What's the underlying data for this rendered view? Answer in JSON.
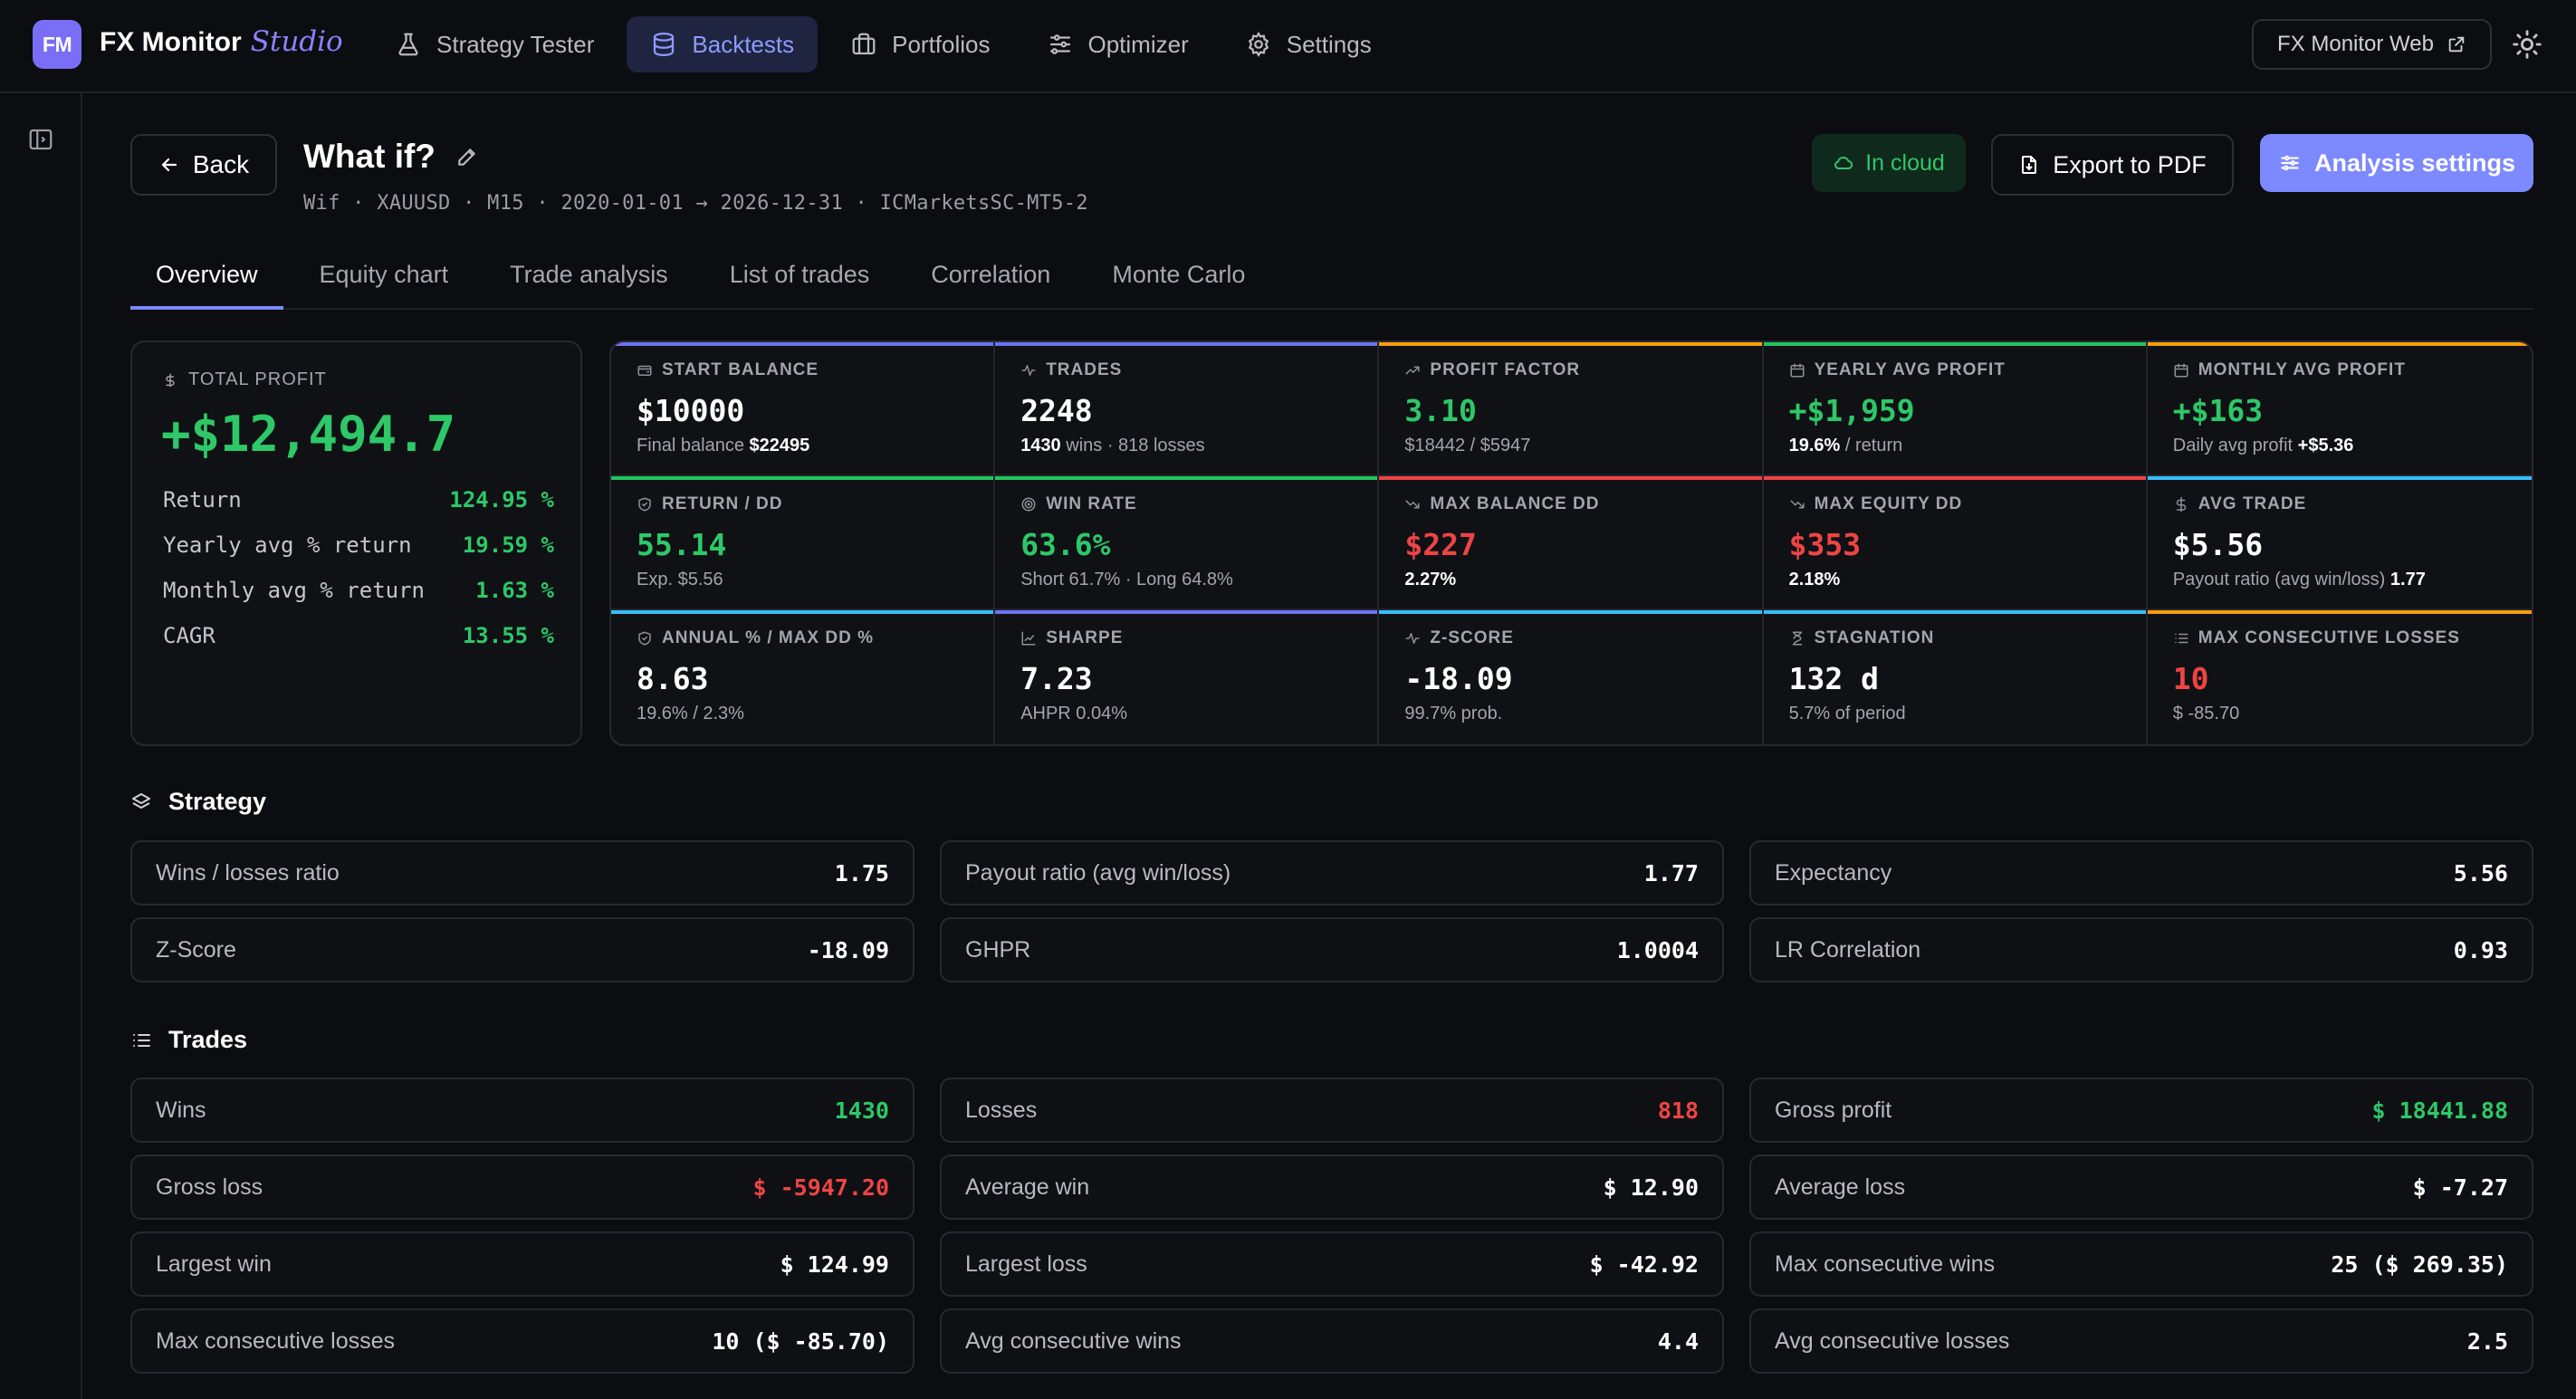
{
  "app": {
    "logo": "FM",
    "brand": "FX Monitor",
    "brand_sub": "Studio"
  },
  "nav": [
    {
      "label": "Strategy Tester",
      "icon": "flask-icon"
    },
    {
      "label": "Backtests",
      "icon": "database-icon",
      "active": true
    },
    {
      "label": "Portfolios",
      "icon": "briefcase-icon"
    },
    {
      "label": "Optimizer",
      "icon": "sliders-icon"
    },
    {
      "label": "Settings",
      "icon": "gear-icon"
    }
  ],
  "header_right": {
    "web_label": "FX Monitor Web"
  },
  "page": {
    "back_label": "Back",
    "title": "What if?",
    "meta": "Wif · XAUUSD · M15 · 2020-01-01 → 2026-12-31 · ICMarketsSC-MT5-2",
    "cloud_label": "In cloud",
    "export_label": "Export to PDF",
    "analysis_label": "Analysis settings"
  },
  "tabs": [
    "Overview",
    "Equity chart",
    "Trade analysis",
    "List of trades",
    "Correlation",
    "Monte Carlo"
  ],
  "total_profit": {
    "label": "TOTAL PROFIT",
    "value": "+$12,494.7",
    "rows": [
      {
        "k": "Return",
        "v": "124.95 %"
      },
      {
        "k": "Yearly avg % return",
        "v": "19.59 %"
      },
      {
        "k": "Monthly avg % return",
        "v": "1.63 %"
      },
      {
        "k": "CAGR",
        "v": "13.55 %"
      }
    ]
  },
  "metrics": [
    {
      "label": "START BALANCE",
      "value": "$10000",
      "sub_pre": "Final balance",
      "sub_b": "$22495",
      "sub_post": "",
      "bar": "#6b73f0",
      "tone": "w",
      "icon": "wallet-icon"
    },
    {
      "label": "TRADES",
      "value": "2248",
      "sub_pre": "",
      "sub_b": "1430",
      "sub_post": "wins · 818 losses",
      "bar": "#6b73f0",
      "tone": "w",
      "icon": "activity-icon"
    },
    {
      "label": "PROFIT FACTOR",
      "value": "3.10",
      "sub_pre": "$18442 / $5947",
      "sub_b": "",
      "sub_post": "",
      "bar": "#f59e0b",
      "tone": "g",
      "icon": "trend-up-icon"
    },
    {
      "label": "YEARLY AVG PROFIT",
      "value": "+$1,959",
      "sub_pre": "",
      "sub_b": "19.6%",
      "sub_post": "/ return",
      "bar": "#22c55e",
      "tone": "g",
      "icon": "calendar-icon"
    },
    {
      "label": "MONTHLY AVG PROFIT",
      "value": "+$163",
      "sub_pre": "Daily avg profit",
      "sub_b": "+$5.36",
      "sub_post": "",
      "bar": "#f59e0b",
      "tone": "g",
      "icon": "calendar-icon"
    },
    {
      "label": "RETURN / DD",
      "value": "55.14",
      "sub_pre": "Exp. $5.56",
      "sub_b": "",
      "sub_post": "",
      "bar": "#22c55e",
      "tone": "g",
      "icon": "shield-icon"
    },
    {
      "label": "WIN RATE",
      "value": "63.6%",
      "sub_pre": "Short 61.7% · Long 64.8%",
      "sub_b": "",
      "sub_post": "",
      "bar": "#22c55e",
      "tone": "g",
      "icon": "target-icon"
    },
    {
      "label": "MAX BALANCE DD",
      "value": "$227",
      "sub_pre": "",
      "sub_b": "2.27%",
      "sub_post": "",
      "bar": "#ef4444",
      "tone": "r",
      "icon": "trend-down-icon"
    },
    {
      "label": "MAX EQUITY DD",
      "value": "$353",
      "sub_pre": "",
      "sub_b": "2.18%",
      "sub_post": "",
      "bar": "#ef4444",
      "tone": "r",
      "icon": "trend-down-icon"
    },
    {
      "label": "AVG TRADE",
      "value": "$5.56",
      "sub_pre": "Payout ratio (avg win/loss)",
      "sub_b": "1.77",
      "sub_post": "",
      "bar": "#38bdf8",
      "tone": "w",
      "icon": "dollar-icon"
    },
    {
      "label": "ANNUAL % / MAX DD %",
      "value": "8.63",
      "sub_pre": "19.6% / 2.3%",
      "sub_b": "",
      "sub_post": "",
      "bar": "#38bdf8",
      "tone": "w",
      "icon": "shield-icon"
    },
    {
      "label": "SHARPE",
      "value": "7.23",
      "sub_pre": "AHPR 0.04%",
      "sub_b": "",
      "sub_post": "",
      "bar": "#6b73f0",
      "tone": "w",
      "icon": "chart-icon"
    },
    {
      "label": "Z-SCORE",
      "value": "-18.09",
      "sub_pre": "99.7% prob.",
      "sub_b": "",
      "sub_post": "",
      "bar": "#38bdf8",
      "tone": "w",
      "icon": "activity-icon"
    },
    {
      "label": "STAGNATION",
      "value": "132 d",
      "sub_pre": "5.7% of period",
      "sub_b": "",
      "sub_post": "",
      "bar": "#38bdf8",
      "tone": "w",
      "icon": "hourglass-icon"
    },
    {
      "label": "MAX CONSECUTIVE LOSSES",
      "value": "10",
      "sub_pre": "$ -85.70",
      "sub_b": "",
      "sub_post": "",
      "bar": "#f59e0b",
      "tone": "r",
      "icon": "list-icon"
    }
  ],
  "strategy": {
    "title": "Strategy",
    "rows": [
      {
        "k": "Wins / losses ratio",
        "v": "1.75",
        "tone": "w"
      },
      {
        "k": "Payout ratio (avg win/loss)",
        "v": "1.77",
        "tone": "w"
      },
      {
        "k": "Expectancy",
        "v": "5.56",
        "tone": "w"
      },
      {
        "k": "Z-Score",
        "v": "-18.09",
        "tone": "w"
      },
      {
        "k": "GHPR",
        "v": "1.0004",
        "tone": "w"
      },
      {
        "k": "LR Correlation",
        "v": "0.93",
        "tone": "w"
      }
    ]
  },
  "trades": {
    "title": "Trades",
    "rows": [
      {
        "k": "Wins",
        "v": "1430",
        "tone": "g"
      },
      {
        "k": "Losses",
        "v": "818",
        "tone": "r"
      },
      {
        "k": "Gross profit",
        "v": "$ 18441.88",
        "tone": "g"
      },
      {
        "k": "Gross loss",
        "v": "$ -5947.20",
        "tone": "r"
      },
      {
        "k": "Average win",
        "v": "$ 12.90",
        "tone": "w"
      },
      {
        "k": "Average loss",
        "v": "$ -7.27",
        "tone": "w"
      },
      {
        "k": "Largest win",
        "v": "$ 124.99",
        "tone": "w"
      },
      {
        "k": "Largest loss",
        "v": "$ -42.92",
        "tone": "w"
      },
      {
        "k": "Max consecutive wins",
        "v": "25 ($ 269.35)",
        "tone": "w"
      },
      {
        "k": "Max consecutive losses",
        "v": "10 ($ -85.70)",
        "tone": "w"
      },
      {
        "k": "Avg consecutive wins",
        "v": "4.4",
        "tone": "w"
      },
      {
        "k": "Avg consecutive losses",
        "v": "2.5",
        "tone": "w"
      }
    ]
  }
}
